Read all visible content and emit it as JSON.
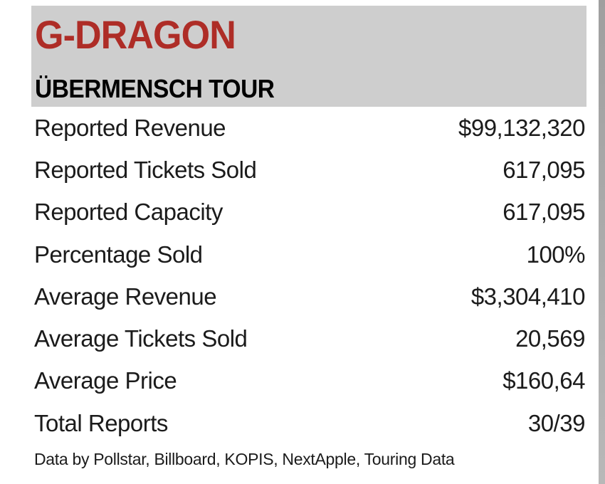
{
  "header": {
    "artist": "G-DRAGON",
    "tour": "ÜBERMENSCH TOUR"
  },
  "stats": {
    "rows": [
      {
        "label": "Reported Revenue",
        "value": "$99,132,320"
      },
      {
        "label": "Reported Tickets Sold",
        "value": "617,095"
      },
      {
        "label": "Reported Capacity",
        "value": "617,095"
      },
      {
        "label": "Percentage Sold",
        "value": "100%"
      },
      {
        "label": "Average Revenue",
        "value": "$3,304,410"
      },
      {
        "label": "Average Tickets Sold",
        "value": "20,569"
      },
      {
        "label": "Average Price",
        "value": "$160,64"
      },
      {
        "label": "Total Reports",
        "value": "30/39"
      }
    ]
  },
  "footer": {
    "credits": "Data by Pollstar, Billboard, KOPIS, NextApple, Touring Data"
  },
  "colors": {
    "accent_red": "#ae2d27",
    "header_bg": "#cecece",
    "text": "#1b1b1b",
    "edge_strip_top": "#9f9f9f",
    "edge_strip_bottom": "#b8b8b8",
    "page_bg": "#ffffff"
  }
}
